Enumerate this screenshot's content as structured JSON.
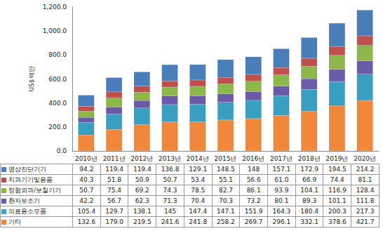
{
  "chart_data": {
    "type": "bar",
    "stacked": true,
    "data_labels": true,
    "grid": false,
    "y_label": "US$백만",
    "categories": [
      "2010년",
      "2011년",
      "2012년",
      "2013년",
      "2014년",
      "2015년",
      "2016년",
      "2017년",
      "2018년",
      "2019년",
      "2020년"
    ],
    "ylim": [
      0,
      1200
    ],
    "yticks": [
      {
        "value": 0,
        "label": "0.0"
      },
      {
        "value": 200,
        "label": "200.0"
      },
      {
        "value": 400,
        "label": "400.0"
      },
      {
        "value": 600,
        "label": "600.0"
      },
      {
        "value": 800,
        "label": "800.0"
      },
      {
        "value": 1000,
        "label": "1,000.0"
      },
      {
        "value": 1200,
        "label": "1,200.0"
      }
    ],
    "series": [
      {
        "name": "영상진단기기",
        "color": "#4a7ebb",
        "values": [
          94.2,
          119.4,
          119.4,
          136.8,
          129.1,
          148.5,
          148,
          157.1,
          172.9,
          194.5,
          214.2
        ]
      },
      {
        "name": "치과기기및용품",
        "color": "#c0504d",
        "values": [
          40.3,
          51.8,
          50.9,
          50.7,
          53.4,
          55.1,
          56.6,
          61.0,
          66.9,
          74.4,
          81.1
        ],
        "value_labels": [
          "40.3",
          "51.8",
          "50.9",
          "50.7",
          "53.4",
          "55.1",
          "56.6",
          "61.0",
          "66.9",
          "74.4",
          "81.1"
        ]
      },
      {
        "name": "정형외과/보철기기",
        "color": "#8cb84a",
        "values": [
          50.7,
          75.4,
          69.2,
          74.3,
          78.5,
          82.7,
          86.1,
          93.9,
          104.1,
          116.9,
          128.4
        ]
      },
      {
        "name": "환자보조기",
        "color": "#6b5aa8",
        "values": [
          42.2,
          56.7,
          62.3,
          71.3,
          70.4,
          70.3,
          73.2,
          80.1,
          89.3,
          101.1,
          111.8
        ]
      },
      {
        "name": "의료용소모품",
        "color": "#3a9fc0",
        "values": [
          105.4,
          129.7,
          138.1,
          145,
          147.4,
          147.1,
          151.9,
          164.3,
          180.4,
          200.3,
          217.3
        ]
      },
      {
        "name": "기타",
        "color": "#f0883c",
        "values": [
          132.6,
          179.0,
          219.5,
          241.6,
          241.8,
          258.2,
          269.7,
          296.1,
          332.1,
          378.6,
          421.7
        ],
        "value_labels": [
          "132.6",
          "179.0",
          "219.5",
          "241.6",
          "241.8",
          "258.2",
          "269.7",
          "296.1",
          "332.1",
          "378.6",
          "421.7"
        ]
      }
    ]
  }
}
